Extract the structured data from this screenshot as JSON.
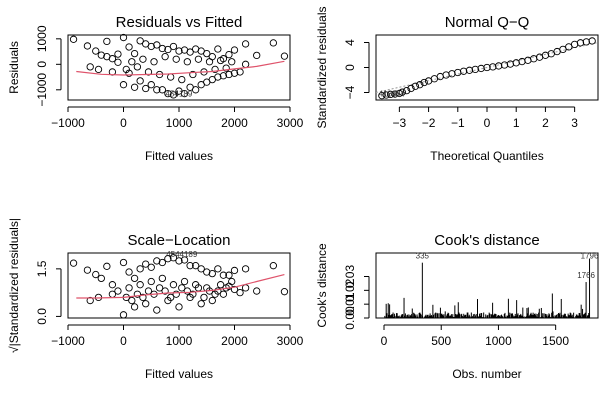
{
  "chart_data": [
    {
      "type": "scatter",
      "title": "Residuals vs Fitted",
      "xlabel": "Fitted values",
      "ylabel": "Residuals",
      "xlim": [
        -1000,
        3000
      ],
      "ylim": [
        -1400,
        1150
      ],
      "xticks": [
        -1000,
        0,
        1000,
        2000,
        3000
      ],
      "yticks": [
        -1000,
        0,
        1000
      ],
      "xtick_labels": [
        "−1000",
        "0",
        "1000",
        "2000",
        "3000"
      ],
      "ytick_labels": [
        "−1000",
        "0",
        "1000"
      ],
      "outlier_labels": [
        {
          "text": "454",
          "x": 875,
          "y": -1270
        },
        {
          "text": "4189",
          "x": 1080,
          "y": -1270
        }
      ],
      "smoother": [
        [
          -850,
          -280
        ],
        [
          -400,
          -390
        ],
        [
          0,
          -420
        ],
        [
          400,
          -400
        ],
        [
          800,
          -380
        ],
        [
          1200,
          -330
        ],
        [
          1600,
          -280
        ],
        [
          2000,
          -180
        ],
        [
          2400,
          -80
        ],
        [
          2900,
          120
        ]
      ],
      "series": [
        {
          "points": [
            [
              -900,
              980
            ],
            [
              -650,
              720
            ],
            [
              -500,
              520
            ],
            [
              -400,
              360
            ],
            [
              -300,
              900
            ],
            [
              -200,
              220
            ],
            [
              -100,
              80
            ],
            [
              0,
              1050
            ],
            [
              100,
              680
            ],
            [
              200,
              420
            ],
            [
              300,
              920
            ],
            [
              400,
              800
            ],
            [
              500,
              700
            ],
            [
              600,
              760
            ],
            [
              700,
              620
            ],
            [
              800,
              580
            ],
            [
              900,
              700
            ],
            [
              1000,
              520
            ],
            [
              1100,
              560
            ],
            [
              1200,
              480
            ],
            [
              1300,
              600
            ],
            [
              1400,
              520
            ],
            [
              1500,
              420
            ],
            [
              1600,
              300
            ],
            [
              1700,
              600
            ],
            [
              1800,
              220
            ],
            [
              1900,
              380
            ],
            [
              2000,
              560
            ],
            [
              2200,
              800
            ],
            [
              2700,
              840
            ],
            [
              2900,
              320
            ],
            [
              -600,
              -100
            ],
            [
              -450,
              -200
            ],
            [
              -200,
              -300
            ],
            [
              0,
              -800
            ],
            [
              100,
              -350
            ],
            [
              200,
              -900
            ],
            [
              300,
              -650
            ],
            [
              400,
              -950
            ],
            [
              500,
              -800
            ],
            [
              600,
              -1000
            ],
            [
              700,
              -1000
            ],
            [
              800,
              -1150
            ],
            [
              900,
              -1200
            ],
            [
              1000,
              -1050
            ],
            [
              1100,
              -1150
            ],
            [
              1200,
              -900
            ],
            [
              1300,
              -1000
            ],
            [
              1400,
              -800
            ],
            [
              1500,
              -700
            ],
            [
              1600,
              -600
            ],
            [
              1700,
              -500
            ],
            [
              1800,
              -450
            ],
            [
              1900,
              -400
            ],
            [
              2000,
              -350
            ],
            [
              2100,
              -300
            ],
            [
              2200,
              0
            ],
            [
              2400,
              350
            ],
            [
              -300,
              300
            ],
            [
              -100,
              400
            ],
            [
              50,
              -200
            ],
            [
              150,
              100
            ],
            [
              250,
              -100
            ],
            [
              350,
              200
            ],
            [
              450,
              -300
            ],
            [
              550,
              100
            ],
            [
              650,
              -400
            ],
            [
              750,
              300
            ],
            [
              850,
              -500
            ],
            [
              950,
              200
            ],
            [
              1050,
              -600
            ],
            [
              1150,
              100
            ],
            [
              1250,
              -400
            ],
            [
              1350,
              200
            ],
            [
              1450,
              -300
            ],
            [
              1550,
              100
            ],
            [
              1650,
              -200
            ],
            [
              1750,
              150
            ],
            [
              1850,
              -150
            ],
            [
              1950,
              100
            ]
          ]
        }
      ]
    },
    {
      "type": "scatter",
      "title": "Normal Q−Q",
      "xlabel": "Theoretical Quantiles",
      "ylabel": "Standardized residuals",
      "xlim": [
        -3.8,
        3.8
      ],
      "ylim": [
        -5.2,
        5.2
      ],
      "xticks": [
        -3,
        -2,
        -1,
        0,
        1,
        2,
        3
      ],
      "yticks": [
        -4,
        0,
        4
      ],
      "xtick_labels": [
        "−3",
        "−2",
        "−1",
        "0",
        "1",
        "2",
        "3"
      ],
      "ytick_labels": [
        "−4",
        "0",
        "4"
      ],
      "outlier_labels": [
        {
          "text": "4189",
          "x": -3.4,
          "y": -4.6
        },
        {
          "text": "454",
          "x": -3.05,
          "y": -4.6
        }
      ],
      "reference_line": [
        [
          -3.8,
          -4.0
        ],
        [
          3.8,
          4.0
        ]
      ],
      "series": [
        {
          "points": [
            [
              -3.6,
              -4.5
            ],
            [
              -3.45,
              -4.4
            ],
            [
              -3.3,
              -4.3
            ],
            [
              -3.15,
              -4.25
            ],
            [
              -3.0,
              -4.15
            ],
            [
              -2.9,
              -3.95
            ],
            [
              -2.75,
              -3.7
            ],
            [
              -2.6,
              -3.35
            ],
            [
              -2.45,
              -3.0
            ],
            [
              -2.3,
              -2.75
            ],
            [
              -2.15,
              -2.4
            ],
            [
              -2.0,
              -2.15
            ],
            [
              -1.8,
              -1.8
            ],
            [
              -1.6,
              -1.45
            ],
            [
              -1.4,
              -1.2
            ],
            [
              -1.2,
              -1.0
            ],
            [
              -1.0,
              -0.8
            ],
            [
              -0.8,
              -0.6
            ],
            [
              -0.6,
              -0.45
            ],
            [
              -0.4,
              -0.3
            ],
            [
              -0.2,
              -0.15
            ],
            [
              0,
              0
            ],
            [
              0.2,
              0.1
            ],
            [
              0.4,
              0.25
            ],
            [
              0.6,
              0.4
            ],
            [
              0.8,
              0.55
            ],
            [
              1.0,
              0.75
            ],
            [
              1.2,
              0.95
            ],
            [
              1.4,
              1.15
            ],
            [
              1.6,
              1.4
            ],
            [
              1.8,
              1.65
            ],
            [
              2.0,
              1.95
            ],
            [
              2.2,
              2.2
            ],
            [
              2.4,
              2.55
            ],
            [
              2.6,
              2.9
            ],
            [
              2.8,
              3.3
            ],
            [
              3.0,
              3.7
            ],
            [
              3.2,
              3.95
            ],
            [
              3.4,
              4.1
            ],
            [
              3.6,
              4.25
            ]
          ]
        }
      ]
    },
    {
      "type": "scatter",
      "title": "Scale−Location",
      "xlabel": "Fitted values",
      "ylabel": "√|Standardized residuals|",
      "xlim": [
        -1000,
        3000
      ],
      "ylim": [
        -0.05,
        2.0
      ],
      "xticks": [
        -1000,
        0,
        1000,
        2000,
        3000
      ],
      "yticks": [
        0.0,
        1.5
      ],
      "xtick_labels": [
        "−1000",
        "0",
        "1000",
        "2000",
        "3000"
      ],
      "ytick_labels": [
        "0.0",
        "1.5"
      ],
      "outlier_labels": [
        {
          "text": "4544189",
          "x": 1050,
          "y": 1.87
        }
      ],
      "smoother": [
        [
          -850,
          0.58
        ],
        [
          -500,
          0.58
        ],
        [
          0,
          0.6
        ],
        [
          400,
          0.68
        ],
        [
          800,
          0.74
        ],
        [
          1200,
          0.76
        ],
        [
          1600,
          0.82
        ],
        [
          2000,
          0.92
        ],
        [
          2400,
          1.1
        ],
        [
          2900,
          1.32
        ]
      ],
      "series": [
        {
          "points": [
            [
              -900,
              1.68
            ],
            [
              -650,
              1.46
            ],
            [
              -500,
              1.32
            ],
            [
              -400,
              1.2
            ],
            [
              -300,
              1.58
            ],
            [
              -200,
              1.0
            ],
            [
              -100,
              0.8
            ],
            [
              0,
              1.7
            ],
            [
              100,
              1.4
            ],
            [
              200,
              1.2
            ],
            [
              300,
              1.5
            ],
            [
              400,
              1.65
            ],
            [
              500,
              1.55
            ],
            [
              600,
              1.75
            ],
            [
              700,
              1.7
            ],
            [
              800,
              1.82
            ],
            [
              900,
              1.85
            ],
            [
              1000,
              1.75
            ],
            [
              1100,
              1.78
            ],
            [
              1200,
              1.6
            ],
            [
              1300,
              1.6
            ],
            [
              1400,
              1.5
            ],
            [
              1500,
              1.4
            ],
            [
              1600,
              1.35
            ],
            [
              1700,
              1.5
            ],
            [
              1800,
              1.3
            ],
            [
              1900,
              1.3
            ],
            [
              2000,
              1.45
            ],
            [
              2200,
              1.5
            ],
            [
              2700,
              1.6
            ],
            [
              2900,
              0.78
            ],
            [
              -600,
              0.5
            ],
            [
              -450,
              0.6
            ],
            [
              -200,
              0.7
            ],
            [
              0,
              0.05
            ],
            [
              100,
              0.9
            ],
            [
              200,
              0.3
            ],
            [
              300,
              1.0
            ],
            [
              400,
              0.4
            ],
            [
              500,
              1.1
            ],
            [
              600,
              0.2
            ],
            [
              700,
              1.2
            ],
            [
              800,
              0.5
            ],
            [
              900,
              1.0
            ],
            [
              1000,
              0.3
            ],
            [
              1100,
              1.1
            ],
            [
              1200,
              0.6
            ],
            [
              1300,
              1.0
            ],
            [
              1400,
              0.4
            ],
            [
              1500,
              0.9
            ],
            [
              1600,
              0.5
            ],
            [
              1700,
              0.8
            ],
            [
              1800,
              0.7
            ],
            [
              1900,
              0.95
            ],
            [
              2000,
              0.85
            ],
            [
              2100,
              0.75
            ],
            [
              2200,
              0.9
            ],
            [
              2400,
              0.8
            ],
            [
              50,
              0.6
            ],
            [
              150,
              0.5
            ],
            [
              250,
              0.7
            ],
            [
              350,
              0.6
            ],
            [
              450,
              0.8
            ],
            [
              550,
              0.7
            ],
            [
              650,
              0.9
            ],
            [
              750,
              0.8
            ],
            [
              850,
              0.6
            ],
            [
              950,
              0.7
            ],
            [
              1050,
              0.9
            ],
            [
              1150,
              0.8
            ],
            [
              1250,
              0.7
            ],
            [
              1350,
              0.9
            ],
            [
              1450,
              0.6
            ],
            [
              1550,
              0.8
            ],
            [
              1650,
              0.7
            ],
            [
              1750,
              1.0
            ],
            [
              1850,
              0.9
            ],
            [
              1950,
              1.1
            ]
          ]
        }
      ]
    },
    {
      "type": "bar",
      "title": "Cook's distance",
      "xlabel": "Obs. number",
      "ylabel": "Cook's distance",
      "xlim": [
        -70,
        1870
      ],
      "ylim": [
        0,
        0.047
      ],
      "xticks": [
        0,
        500,
        1000,
        1500
      ],
      "yticks": [
        0.0,
        0.01,
        0.02,
        0.03
      ],
      "xtick_labels": [
        "0",
        "500",
        "1000",
        "1500"
      ],
      "ytick_labels": [
        "0.00",
        "0.01",
        "0.02",
        "0.03"
      ],
      "outlier_labels": [
        {
          "text": "335",
          "x": 335,
          "y": 0.043
        },
        {
          "text": "1796",
          "x": 1796,
          "y": 0.043
        },
        {
          "text": "1766",
          "x": 1766,
          "y": 0.029
        }
      ],
      "highlights": [
        [
          335,
          0.04
        ],
        [
          1766,
          0.026
        ],
        [
          1796,
          0.043
        ]
      ],
      "obs_count": 1800
    }
  ]
}
